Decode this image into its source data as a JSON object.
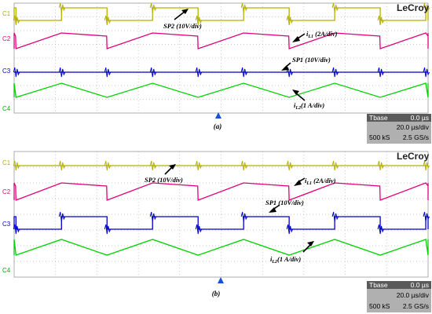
{
  "brand": "LeCroy",
  "colors": {
    "c1": "#b5b000",
    "c2": "#e0007a",
    "c3": "#0000cc",
    "c4": "#00d200",
    "grid": "#9a9a9a",
    "info_bg": "#b0b0b0",
    "info_dark": "#3a3a3a",
    "trigger": "#1a4fd8"
  },
  "channels": [
    "C1",
    "C2",
    "C3",
    "C4"
  ],
  "panels": [
    {
      "caption": "(a)",
      "labels": {
        "sp2": "SP2  (10V/div)",
        "il1": "i",
        "il1_sub": "L1",
        "il1_unit": " (2A/div)",
        "sp1": "SP1 (10V/div)",
        "il2": "i",
        "il2_sub": "L2",
        "il2_unit": "(1 A/div)"
      },
      "info": {
        "row1_label": "Tbase",
        "row1_value": "0.0 µs",
        "row2_value": "20.0 µs/div",
        "row3_left": "500 kS",
        "row3_right": "2.5 GS/s"
      }
    },
    {
      "caption": "(b)",
      "labels": {
        "sp2": "SP2  (10V/div)",
        "il1": "i",
        "il1_sub": "L1",
        "il1_unit": " (2A/div)",
        "sp1": "SP1 (10V/div)",
        "il2": "i",
        "il2_sub": "L2",
        "il2_unit": "(1 A/div)"
      },
      "info": {
        "row1_label": "Tbase",
        "row1_value": "0.0 µs",
        "row2_value": "20.0 µs/div",
        "row3_left": "500 kS",
        "row3_right": "2.5 GS/s"
      }
    }
  ],
  "chart_data": [
    {
      "type": "line",
      "title": "",
      "x_unit": "µs",
      "x_scale": "20.0 µs/div",
      "xlim": [
        0,
        200
      ],
      "period_us": 44,
      "series": [
        {
          "name": "SP2  (10V/div)",
          "channel": "C1",
          "shape": "square",
          "duty_high": 0.5,
          "phase": 0.02
        },
        {
          "name": "iL1 (2A/div)",
          "channel": "C2",
          "shape": "sawtooth",
          "rise_fraction": 0.5,
          "phase": 0.02
        },
        {
          "name": "SP1 (10V/div)",
          "channel": "C3",
          "shape": "spikes",
          "phase": 0.02
        },
        {
          "name": "iL2(1 A/div)",
          "channel": "C4",
          "shape": "triangle",
          "phase": 0.02
        }
      ]
    },
    {
      "type": "line",
      "title": "",
      "x_unit": "µs",
      "x_scale": "20.0 µs/div",
      "xlim": [
        0,
        200
      ],
      "period_us": 44,
      "series": [
        {
          "name": "SP2  (10V/div)",
          "channel": "C1",
          "shape": "spikes",
          "phase": 0.02
        },
        {
          "name": "iL1 (2A/div)",
          "channel": "C2",
          "shape": "sawtooth",
          "rise_fraction": 0.5,
          "phase": 0.02
        },
        {
          "name": "SP1 (10V/div)",
          "channel": "C3",
          "shape": "square",
          "duty_high": 0.5,
          "phase": 0.02
        },
        {
          "name": "iL2(1 A/div)",
          "channel": "C4",
          "shape": "triangle",
          "phase": 0.02
        }
      ]
    }
  ]
}
